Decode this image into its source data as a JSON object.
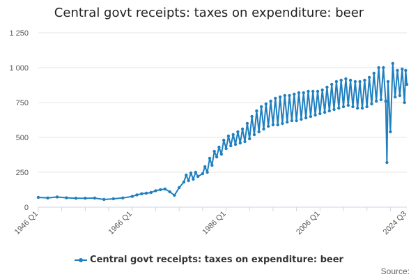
{
  "title": "Central govt receipts: taxes on expenditure: beer",
  "legend_label": "Central govt receipts: taxes on expenditure: beer",
  "credits": "Source:",
  "colors": {
    "series": "#1f7fbf",
    "grid": "#e6e6e6",
    "axis": "#ccd6eb",
    "text": "#333333"
  },
  "chart_data": {
    "type": "line",
    "title": "Central govt receipts: taxes on expenditure: beer",
    "xlabel": "",
    "ylabel": "",
    "x_range": [
      "1946 Q1",
      "2024 Q3"
    ],
    "xtick_labels": [
      "1946 Q1",
      "1966 Q1",
      "1986 Q1",
      "2006 Q1",
      "2024 Q3"
    ],
    "ylim": [
      0,
      1250
    ],
    "yticks": [
      0,
      250,
      500,
      750,
      1000,
      1250
    ],
    "ytick_labels": [
      "0",
      "250",
      "500",
      "750",
      "1 000",
      "1 250"
    ],
    "grid": true,
    "legend": "bottom",
    "markers": true,
    "series": [
      {
        "name": "Central govt receipts: taxes on expenditure: beer",
        "points": [
          [
            "1946 Q1",
            70
          ],
          [
            "1948 Q1",
            66
          ],
          [
            "1950 Q1",
            73
          ],
          [
            "1952 Q1",
            67
          ],
          [
            "1954 Q1",
            64
          ],
          [
            "1956 Q1",
            64
          ],
          [
            "1958 Q1",
            65
          ],
          [
            "1960 Q1",
            55
          ],
          [
            "1962 Q1",
            60
          ],
          [
            "1964 Q1",
            66
          ],
          [
            "1966 Q1",
            77
          ],
          [
            "1967 Q1",
            88
          ],
          [
            "1968 Q1",
            96
          ],
          [
            "1969 Q1",
            100
          ],
          [
            "1970 Q1",
            105
          ],
          [
            "1971 Q1",
            118
          ],
          [
            "1972 Q1",
            125
          ],
          [
            "1973 Q1",
            130
          ],
          [
            "1974 Q1",
            110
          ],
          [
            "1975 Q1",
            85
          ],
          [
            "1976 Q1",
            140
          ],
          [
            "1977 Q1",
            180
          ],
          [
            "1977 Q3",
            230
          ],
          [
            "1978 Q1",
            190
          ],
          [
            "1978 Q3",
            245
          ],
          [
            "1979 Q1",
            200
          ],
          [
            "1979 Q3",
            250
          ],
          [
            "1980 Q1",
            220
          ],
          [
            "1981 Q1",
            240
          ],
          [
            "1981 Q3",
            290
          ],
          [
            "1982 Q1",
            250
          ],
          [
            "1982 Q3",
            350
          ],
          [
            "1983 Q1",
            300
          ],
          [
            "1983 Q3",
            400
          ],
          [
            "1984 Q1",
            360
          ],
          [
            "1984 Q3",
            430
          ],
          [
            "1985 Q1",
            380
          ],
          [
            "1985 Q3",
            480
          ],
          [
            "1986 Q1",
            420
          ],
          [
            "1986 Q3",
            510
          ],
          [
            "1987 Q1",
            440
          ],
          [
            "1987 Q3",
            520
          ],
          [
            "1988 Q1",
            450
          ],
          [
            "1988 Q3",
            540
          ],
          [
            "1989 Q1",
            460
          ],
          [
            "1989 Q3",
            560
          ],
          [
            "1990 Q1",
            470
          ],
          [
            "1990 Q3",
            600
          ],
          [
            "1991 Q1",
            490
          ],
          [
            "1991 Q3",
            650
          ],
          [
            "1992 Q1",
            520
          ],
          [
            "1992 Q3",
            690
          ],
          [
            "1993 Q1",
            540
          ],
          [
            "1993 Q3",
            720
          ],
          [
            "1994 Q1",
            560
          ],
          [
            "1994 Q3",
            740
          ],
          [
            "1995 Q1",
            580
          ],
          [
            "1995 Q3",
            760
          ],
          [
            "1996 Q1",
            590
          ],
          [
            "1996 Q3",
            780
          ],
          [
            "1997 Q1",
            590
          ],
          [
            "1997 Q3",
            790
          ],
          [
            "1998 Q1",
            600
          ],
          [
            "1998 Q3",
            800
          ],
          [
            "1999 Q1",
            610
          ],
          [
            "1999 Q3",
            800
          ],
          [
            "2000 Q1",
            620
          ],
          [
            "2000 Q3",
            810
          ],
          [
            "2001 Q1",
            620
          ],
          [
            "2001 Q3",
            820
          ],
          [
            "2002 Q1",
            630
          ],
          [
            "2002 Q3",
            820
          ],
          [
            "2003 Q1",
            640
          ],
          [
            "2003 Q3",
            830
          ],
          [
            "2004 Q1",
            650
          ],
          [
            "2004 Q3",
            830
          ],
          [
            "2005 Q1",
            660
          ],
          [
            "2005 Q3",
            830
          ],
          [
            "2006 Q1",
            670
          ],
          [
            "2006 Q3",
            840
          ],
          [
            "2007 Q1",
            680
          ],
          [
            "2007 Q3",
            860
          ],
          [
            "2008 Q1",
            690
          ],
          [
            "2008 Q3",
            880
          ],
          [
            "2009 Q1",
            700
          ],
          [
            "2009 Q3",
            900
          ],
          [
            "2010 Q1",
            710
          ],
          [
            "2010 Q3",
            910
          ],
          [
            "2011 Q1",
            720
          ],
          [
            "2011 Q3",
            920
          ],
          [
            "2012 Q1",
            730
          ],
          [
            "2012 Q3",
            910
          ],
          [
            "2013 Q1",
            720
          ],
          [
            "2013 Q3",
            900
          ],
          [
            "2014 Q1",
            710
          ],
          [
            "2014 Q3",
            900
          ],
          [
            "2015 Q1",
            710
          ],
          [
            "2015 Q3",
            910
          ],
          [
            "2016 Q1",
            720
          ],
          [
            "2016 Q3",
            930
          ],
          [
            "2017 Q1",
            740
          ],
          [
            "2017 Q3",
            960
          ],
          [
            "2018 Q1",
            760
          ],
          [
            "2018 Q3",
            1000
          ],
          [
            "2019 Q1",
            770
          ],
          [
            "2019 Q3",
            1000
          ],
          [
            "2020 Q1",
            760
          ],
          [
            "2020 Q2",
            320
          ],
          [
            "2020 Q3",
            900
          ],
          [
            "2021 Q1",
            540
          ],
          [
            "2021 Q3",
            1030
          ],
          [
            "2022 Q1",
            790
          ],
          [
            "2022 Q3",
            980
          ],
          [
            "2023 Q1",
            800
          ],
          [
            "2023 Q3",
            990
          ],
          [
            "2024 Q1",
            750
          ],
          [
            "2024 Q2",
            980
          ],
          [
            "2024 Q3",
            880
          ]
        ]
      }
    ]
  }
}
